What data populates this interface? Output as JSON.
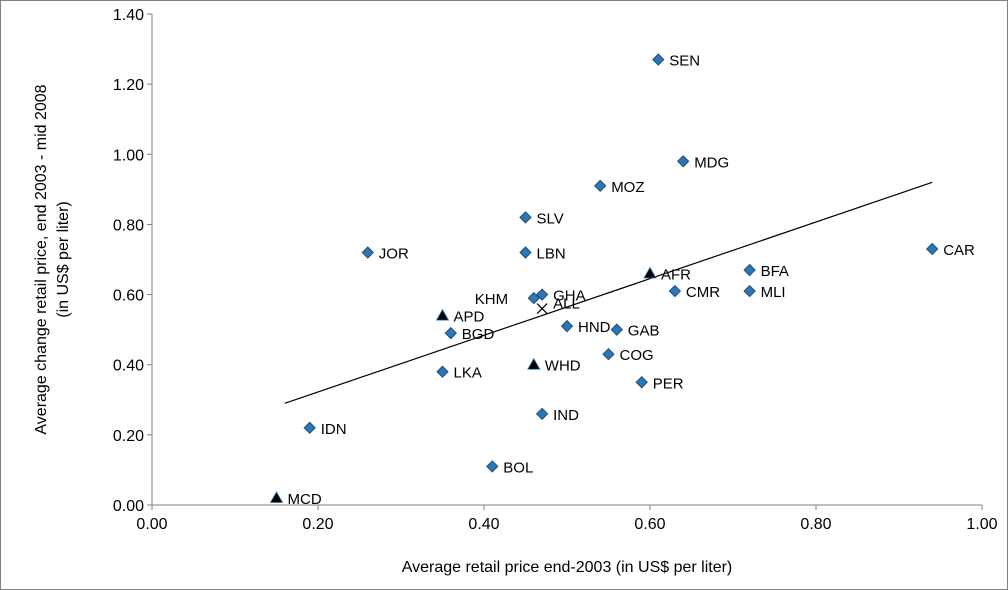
{
  "chart_data": {
    "type": "scatter",
    "xlabel": "Average retail price end-2003 (in US$ per liter)",
    "ylabel_lines": [
      "Average change retail price, end 2003 - mid 2008",
      "(in US$ per liter)"
    ],
    "xlim": [
      0,
      1.0
    ],
    "ylim": [
      0,
      1.4
    ],
    "x_ticks": [
      0.0,
      0.2,
      0.4,
      0.6,
      0.8,
      1.0
    ],
    "x_tick_labels": [
      "0.00",
      "0.20",
      "0.40",
      "0.60",
      "0.80",
      "1.00"
    ],
    "y_ticks": [
      0.0,
      0.2,
      0.4,
      0.6,
      0.8,
      1.0,
      1.2,
      1.4
    ],
    "y_tick_labels": [
      "0.00",
      "0.20",
      "0.40",
      "0.60",
      "0.80",
      "1.00",
      "1.20",
      "1.40"
    ],
    "grid": false,
    "legend": "none",
    "colors": {
      "country_marker": "#2e75b6",
      "country_marker_edge": "#1f4e79",
      "region_marker": "#000000",
      "all_marker": "#000000",
      "trendline": "#000000"
    },
    "countries": [
      {
        "label": "SEN",
        "x": 0.61,
        "y": 1.27
      },
      {
        "label": "MDG",
        "x": 0.64,
        "y": 0.98
      },
      {
        "label": "MOZ",
        "x": 0.54,
        "y": 0.91
      },
      {
        "label": "SLV",
        "x": 0.45,
        "y": 0.82
      },
      {
        "label": "JOR",
        "x": 0.26,
        "y": 0.72
      },
      {
        "label": "LBN",
        "x": 0.45,
        "y": 0.72
      },
      {
        "label": "CAR",
        "x": 0.94,
        "y": 0.73
      },
      {
        "label": "BFA",
        "x": 0.72,
        "y": 0.67
      },
      {
        "label": "CMR",
        "x": 0.63,
        "y": 0.61
      },
      {
        "label": "MLI",
        "x": 0.72,
        "y": 0.61
      },
      {
        "label": "GHA",
        "x": 0.47,
        "y": 0.6
      },
      {
        "label": "KHM",
        "x": 0.46,
        "y": 0.59
      },
      {
        "label": "HND",
        "x": 0.5,
        "y": 0.51
      },
      {
        "label": "GAB",
        "x": 0.56,
        "y": 0.5
      },
      {
        "label": "BGD",
        "x": 0.36,
        "y": 0.49
      },
      {
        "label": "COG",
        "x": 0.55,
        "y": 0.43
      },
      {
        "label": "LKA",
        "x": 0.35,
        "y": 0.38
      },
      {
        "label": "PER",
        "x": 0.59,
        "y": 0.35
      },
      {
        "label": "IND",
        "x": 0.47,
        "y": 0.26
      },
      {
        "label": "IDN",
        "x": 0.19,
        "y": 0.22
      },
      {
        "label": "BOL",
        "x": 0.41,
        "y": 0.11
      }
    ],
    "regions": [
      {
        "label": "AFR",
        "x": 0.6,
        "y": 0.66
      },
      {
        "label": "APD",
        "x": 0.35,
        "y": 0.54
      },
      {
        "label": "WHD",
        "x": 0.46,
        "y": 0.4
      },
      {
        "label": "MCD",
        "x": 0.15,
        "y": 0.02
      }
    ],
    "all": {
      "label": "ALL",
      "x": 0.47,
      "y": 0.56
    },
    "trendline": {
      "x": [
        0.16,
        0.94
      ],
      "y": [
        0.29,
        0.92
      ]
    }
  }
}
